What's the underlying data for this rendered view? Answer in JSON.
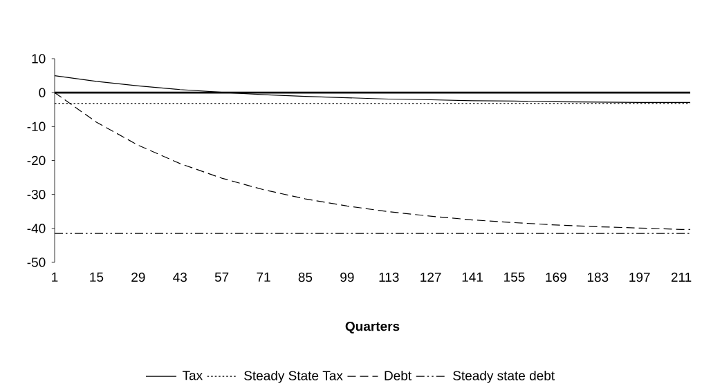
{
  "chart_data": {
    "type": "line",
    "xlabel": "Quarters",
    "x": [
      1,
      15,
      29,
      43,
      57,
      71,
      85,
      99,
      113,
      127,
      141,
      155,
      169,
      183,
      197,
      211,
      214
    ],
    "series": [
      {
        "name": "Tax",
        "color": "#000000",
        "line_style": "solid",
        "values": [
          5.0,
          3.3,
          2.0,
          0.9,
          0.1,
          -0.6,
          -1.1,
          -1.5,
          -1.9,
          -2.1,
          -2.4,
          -2.5,
          -2.7,
          -2.8,
          -2.9,
          -2.9,
          -2.9
        ]
      },
      {
        "name": "Steady State Tax",
        "color": "#000000",
        "line_style": "dotted",
        "values": [
          -3.2,
          -3.2,
          -3.2,
          -3.2,
          -3.2,
          -3.2,
          -3.2,
          -3.2,
          -3.2,
          -3.2,
          -3.2,
          -3.2,
          -3.2,
          -3.2,
          -3.2,
          -3.2,
          -3.2
        ]
      },
      {
        "name": "Debt",
        "color": "#000000",
        "line_style": "dashed",
        "values": [
          0,
          -8.7,
          -15.5,
          -20.9,
          -25.2,
          -28.6,
          -31.3,
          -33.4,
          -35.1,
          -36.4,
          -37.5,
          -38.3,
          -39.0,
          -39.5,
          -39.9,
          -40.3,
          -40.3
        ]
      },
      {
        "name": "Steady state debt",
        "color": "#000000",
        "line_style": "dashdot",
        "values": [
          -41.5,
          -41.5,
          -41.5,
          -41.5,
          -41.5,
          -41.5,
          -41.5,
          -41.5,
          -41.5,
          -41.5,
          -41.5,
          -41.5,
          -41.5,
          -41.5,
          -41.5,
          -41.5,
          -41.5
        ]
      }
    ],
    "xlim": [
      1,
      214
    ],
    "xticks": [
      1,
      15,
      29,
      43,
      57,
      71,
      85,
      99,
      113,
      127,
      141,
      155,
      169,
      183,
      197,
      211
    ],
    "ylim": [
      -50,
      10
    ],
    "yticks": [
      -50,
      -40,
      -30,
      -20,
      -10,
      0,
      10
    ],
    "grid": false,
    "legend": "bottom",
    "marker": "none"
  }
}
